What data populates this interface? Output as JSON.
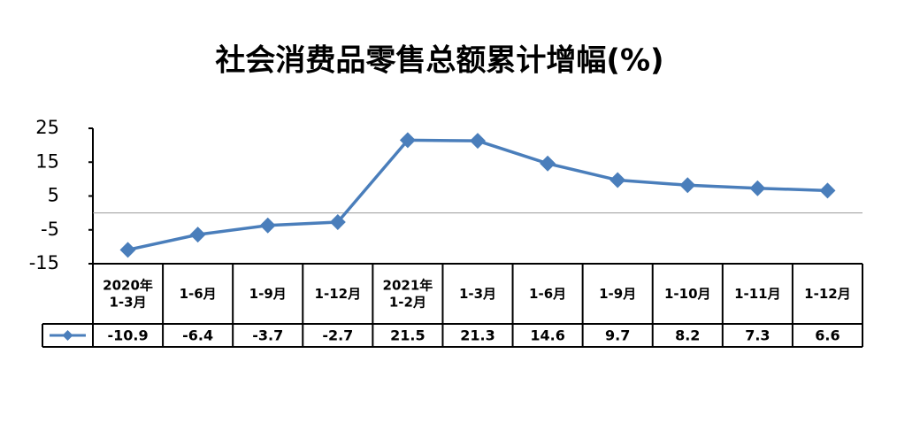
{
  "chart_data": {
    "type": "line",
    "title": "社会消费品零售总额累计增幅(%)",
    "categories": [
      "2020年\n1-3月",
      "1-6月",
      "1-9月",
      "1-12月",
      "2021年\n1-2月",
      "1-3月",
      "1-6月",
      "1-9月",
      "1-10月",
      "1-11月",
      "1-12月"
    ],
    "series": [
      {
        "color": "#4a7ebb",
        "values": [
          -10.9,
          -6.4,
          -3.7,
          -2.7,
          21.5,
          21.3,
          14.6,
          9.7,
          8.2,
          7.3,
          6.6
        ]
      }
    ],
    "ylim": [
      -15,
      25
    ],
    "yticks": [
      25,
      15,
      5,
      -5,
      -15
    ],
    "zero_line": true
  }
}
